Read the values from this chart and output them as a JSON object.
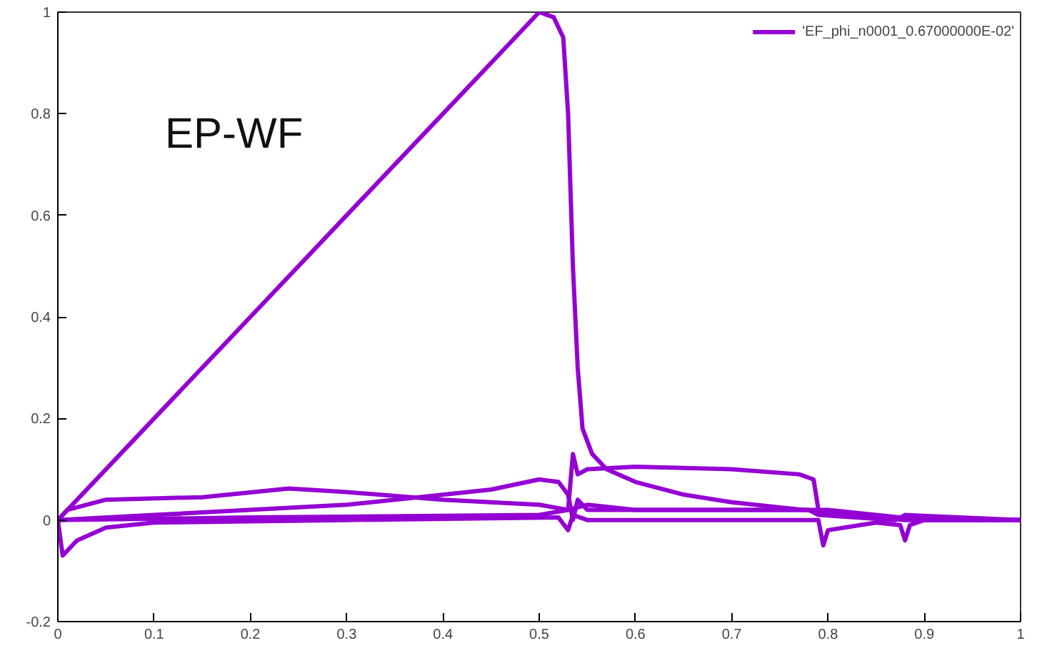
{
  "chart_data": {
    "type": "line",
    "xlim": [
      0,
      1
    ],
    "ylim": [
      -0.2,
      1
    ],
    "xticks": [
      0,
      0.1,
      0.2,
      0.3,
      0.4,
      0.5,
      0.6,
      0.7,
      0.8,
      0.9,
      1
    ],
    "yticks": [
      -0.2,
      0,
      0.2,
      0.4,
      0.6,
      0.8,
      1
    ],
    "grid": false,
    "legend": "top right",
    "line_style": "solid",
    "marker": "none",
    "annotations": [
      "EP-WF"
    ],
    "series": [
      {
        "name": "'EF_phi_n0001_0.67000000E-02'",
        "color": "#9400d3",
        "x": [
          0,
          0.1,
          0.2,
          0.3,
          0.4,
          0.48,
          0.5,
          0.515,
          0.525,
          0.53,
          0.535,
          0.54,
          0.545,
          0.555,
          0.57,
          0.6,
          0.65,
          0.7,
          0.75,
          0.8,
          0.85,
          0.9,
          1.0
        ],
        "values": [
          0,
          0.2,
          0.4,
          0.6,
          0.8,
          0.96,
          1.0,
          0.99,
          0.95,
          0.8,
          0.5,
          0.3,
          0.18,
          0.13,
          0.1,
          0.075,
          0.05,
          0.035,
          0.025,
          0.015,
          0.005,
          0,
          0
        ]
      },
      {
        "color": "#9400d3",
        "x": [
          0,
          0.01,
          0.05,
          0.15,
          0.24,
          0.3,
          0.4,
          0.5,
          0.53,
          0.535,
          0.54,
          0.55,
          0.6,
          0.7,
          0.77,
          0.785,
          0.79,
          0.8,
          0.88,
          1.0
        ],
        "values": [
          0,
          0.02,
          0.04,
          0.045,
          0.062,
          0.055,
          0.04,
          0.03,
          0.02,
          0.13,
          0.09,
          0.1,
          0.105,
          0.1,
          0.09,
          0.08,
          0.02,
          0.015,
          0,
          0
        ]
      },
      {
        "color": "#9400d3",
        "x": [
          0,
          0.1,
          0.3,
          0.45,
          0.5,
          0.52,
          0.53,
          0.535,
          0.54,
          0.55,
          0.6,
          0.8,
          0.9,
          1.0
        ],
        "values": [
          0,
          0.01,
          0.03,
          0.06,
          0.08,
          0.075,
          0.05,
          0,
          0.04,
          0.02,
          0.02,
          0.02,
          0,
          0
        ]
      },
      {
        "color": "#9400d3",
        "x": [
          0,
          0.005,
          0.02,
          0.05,
          0.1,
          0.3,
          0.52,
          0.53,
          0.535,
          0.55,
          0.79,
          0.795,
          0.8,
          0.85,
          0.875,
          0.88,
          0.885,
          0.9,
          1.0
        ],
        "values": [
          0,
          -0.07,
          -0.04,
          -0.015,
          -0.005,
          0,
          0.005,
          -0.02,
          0.01,
          0,
          0,
          -0.05,
          -0.02,
          -0.005,
          -0.01,
          -0.04,
          -0.01,
          0,
          0
        ]
      },
      {
        "color": "#9400d3",
        "x": [
          0,
          0.2,
          0.5,
          0.53,
          0.55,
          0.6,
          0.78,
          0.79,
          0.87,
          0.88,
          1.0
        ],
        "values": [
          0,
          0.005,
          0.01,
          0.02,
          0.03,
          0.02,
          0.02,
          0.01,
          0,
          0.01,
          0
        ]
      }
    ]
  }
}
